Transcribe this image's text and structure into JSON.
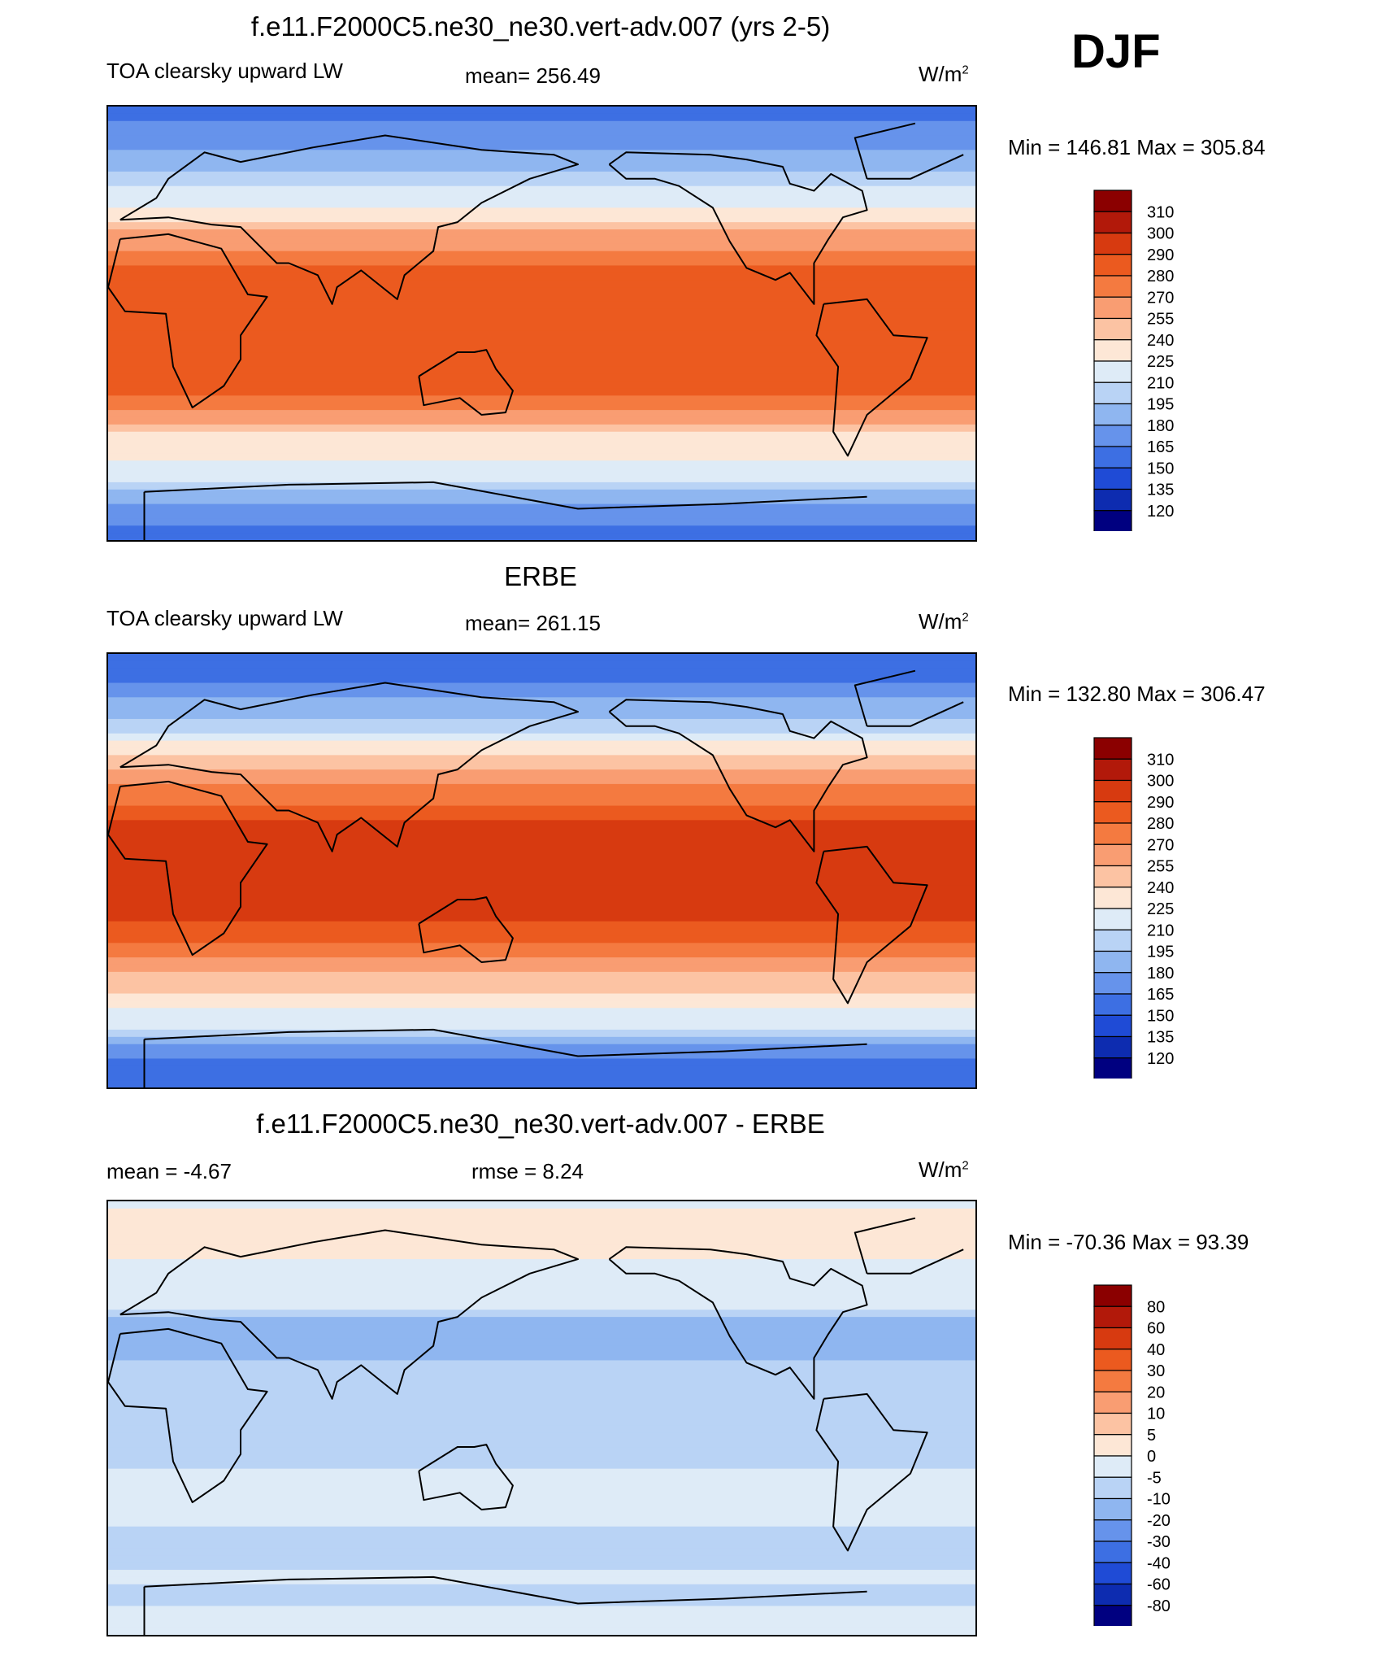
{
  "season": "DJF",
  "units_base": "W/m",
  "units_exp": "2",
  "panels": [
    {
      "title": "f.e11.F2000C5.ne30_ne30.vert-adv.007 (yrs 2-5)",
      "left_label": "TOA clearsky upward LW",
      "center_label": "mean= 256.49",
      "minmax": "Min = 146.81 Max = 305.84"
    },
    {
      "title": "ERBE",
      "left_label": "TOA clearsky upward LW",
      "center_label": "mean= 261.15",
      "minmax": "Min = 132.80 Max = 306.47"
    },
    {
      "title": "f.e11.F2000C5.ne30_ne30.vert-adv.007 - ERBE",
      "left_label": "mean =  -4.67",
      "center_label": "rmse =   8.24",
      "minmax": "Min = -70.36 Max =  93.39"
    }
  ],
  "colorbars": [
    {
      "labels": [
        "310",
        "300",
        "290",
        "280",
        "270",
        "255",
        "240",
        "225",
        "210",
        "195",
        "180",
        "165",
        "150",
        "135",
        "120"
      ],
      "colors": [
        "#8b0000",
        "#b2190a",
        "#d73a10",
        "#eb5a1f",
        "#f47a40",
        "#f99d72",
        "#fcc3a3",
        "#fde7d6",
        "#deebf7",
        "#b9d3f5",
        "#8fb6f0",
        "#6693eb",
        "#3d6fe3",
        "#1f4bd6",
        "#0d2cb0",
        "#000080"
      ]
    },
    {
      "labels": [
        "310",
        "300",
        "290",
        "280",
        "270",
        "255",
        "240",
        "225",
        "210",
        "195",
        "180",
        "165",
        "150",
        "135",
        "120"
      ],
      "colors": [
        "#8b0000",
        "#b2190a",
        "#d73a10",
        "#eb5a1f",
        "#f47a40",
        "#f99d72",
        "#fcc3a3",
        "#fde7d6",
        "#deebf7",
        "#b9d3f5",
        "#8fb6f0",
        "#6693eb",
        "#3d6fe3",
        "#1f4bd6",
        "#0d2cb0",
        "#000080"
      ]
    },
    {
      "labels": [
        "80",
        "60",
        "40",
        "30",
        "20",
        "10",
        "5",
        "0",
        "-5",
        "-10",
        "-20",
        "-30",
        "-40",
        "-60",
        "-80"
      ],
      "colors": [
        "#8b0000",
        "#b2190a",
        "#d73a10",
        "#eb5a1f",
        "#f47a40",
        "#f99d72",
        "#fcc3a3",
        "#fde7d6",
        "#deebf7",
        "#b9d3f5",
        "#8fb6f0",
        "#6693eb",
        "#3d6fe3",
        "#1f4bd6",
        "#0d2cb0",
        "#000080"
      ]
    }
  ],
  "chart_data": [
    {
      "type": "heatmap",
      "title": "f.e11.F2000C5.ne30_ne30.vert-adv.007 (yrs 2-5)",
      "variable": "TOA clearsky upward LW",
      "units": "W/m2",
      "mean": 256.49,
      "min": 146.81,
      "max": 305.84,
      "levels": [
        120,
        135,
        150,
        165,
        180,
        195,
        210,
        225,
        240,
        255,
        270,
        280,
        290,
        300,
        310
      ],
      "lat_profile": [
        [
          90,
          160
        ],
        [
          75,
          175
        ],
        [
          60,
          200
        ],
        [
          45,
          235
        ],
        [
          35,
          265
        ],
        [
          20,
          285
        ],
        [
          0,
          285
        ],
        [
          -20,
          290
        ],
        [
          -35,
          275
        ],
        [
          -45,
          240
        ],
        [
          -55,
          230
        ],
        [
          -65,
          215
        ],
        [
          -75,
          175
        ],
        [
          -90,
          160
        ]
      ]
    },
    {
      "type": "heatmap",
      "title": "ERBE",
      "variable": "TOA clearsky upward LW",
      "units": "W/m2",
      "mean": 261.15,
      "min": 132.8,
      "max": 306.47,
      "levels": [
        120,
        135,
        150,
        165,
        180,
        195,
        210,
        225,
        240,
        255,
        270,
        280,
        290,
        300,
        310
      ],
      "lat_profile": [
        [
          90,
          150
        ],
        [
          75,
          170
        ],
        [
          60,
          205
        ],
        [
          45,
          245
        ],
        [
          35,
          270
        ],
        [
          20,
          290
        ],
        [
          0,
          290
        ],
        [
          -20,
          292
        ],
        [
          -35,
          272
        ],
        [
          -45,
          248
        ],
        [
          -55,
          232
        ],
        [
          -65,
          210
        ],
        [
          -75,
          170
        ],
        [
          -90,
          150
        ]
      ]
    },
    {
      "type": "heatmap",
      "title": "f.e11.F2000C5.ne30_ne30.vert-adv.007 - ERBE",
      "units": "W/m2",
      "mean": -4.67,
      "rmse": 8.24,
      "min": -70.36,
      "max": 93.39,
      "levels": [
        -80,
        -60,
        -40,
        -30,
        -20,
        -10,
        -5,
        0,
        5,
        10,
        20,
        30,
        40,
        60,
        80
      ],
      "lat_profile": [
        [
          90,
          -2
        ],
        [
          75,
          5
        ],
        [
          60,
          -3
        ],
        [
          45,
          -5
        ],
        [
          35,
          -20
        ],
        [
          20,
          -8
        ],
        [
          0,
          -6
        ],
        [
          -20,
          -5
        ],
        [
          -35,
          -3
        ],
        [
          -45,
          -5
        ],
        [
          -55,
          -7
        ],
        [
          -65,
          -4
        ],
        [
          -75,
          -6
        ],
        [
          -90,
          -2
        ]
      ]
    }
  ]
}
